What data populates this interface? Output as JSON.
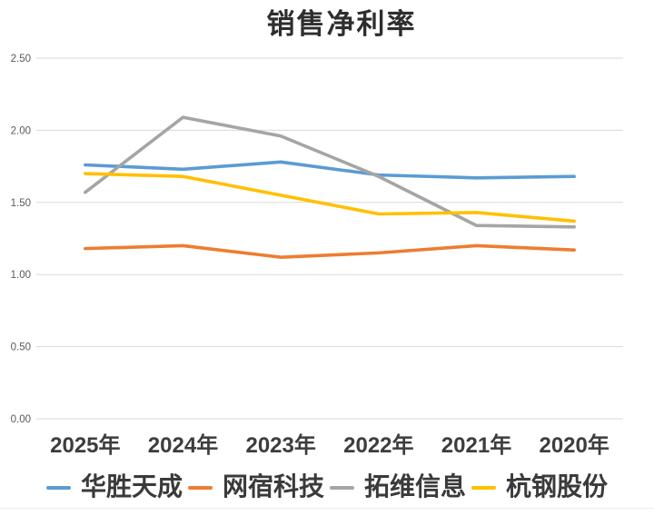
{
  "chart_data": {
    "type": "line",
    "title": "销售净利率",
    "xlabel": "",
    "ylabel": "",
    "categories": [
      "2025年",
      "2024年",
      "2023年",
      "2022年",
      "2021年",
      "2020年"
    ],
    "series": [
      {
        "name": "华胜天成",
        "color": "#5B9BD5",
        "values": [
          1.76,
          1.73,
          1.78,
          1.69,
          1.67,
          1.68
        ]
      },
      {
        "name": "网宿科技",
        "color": "#ED7D31",
        "values": [
          1.18,
          1.2,
          1.12,
          1.15,
          1.2,
          1.17
        ]
      },
      {
        "name": "拓维信息",
        "color": "#A5A5A5",
        "values": [
          1.57,
          2.09,
          1.96,
          1.68,
          1.34,
          1.33
        ]
      },
      {
        "name": "杭钢股份",
        "color": "#FFC000",
        "values": [
          1.7,
          1.68,
          1.55,
          1.42,
          1.43,
          1.37
        ]
      }
    ],
    "yticks": [
      {
        "value": 0.0,
        "label": "0.00"
      },
      {
        "value": 0.5,
        "label": "0.50"
      },
      {
        "value": 1.0,
        "label": "1.00"
      },
      {
        "value": 1.5,
        "label": "1.50"
      },
      {
        "value": 2.0,
        "label": "2.00"
      },
      {
        "value": 2.5,
        "label": "2.50"
      }
    ],
    "ylim": [
      0,
      2.5
    ],
    "grid": true,
    "legend_position": "bottom"
  },
  "colors": {
    "background": "#FFFFFF",
    "grid": "#D9D9D9",
    "y_tick_text": "#595959",
    "x_tick_text": "#3D3D3D",
    "title_text": "#2E2E2E",
    "legend_text": "#3A3A3A"
  }
}
